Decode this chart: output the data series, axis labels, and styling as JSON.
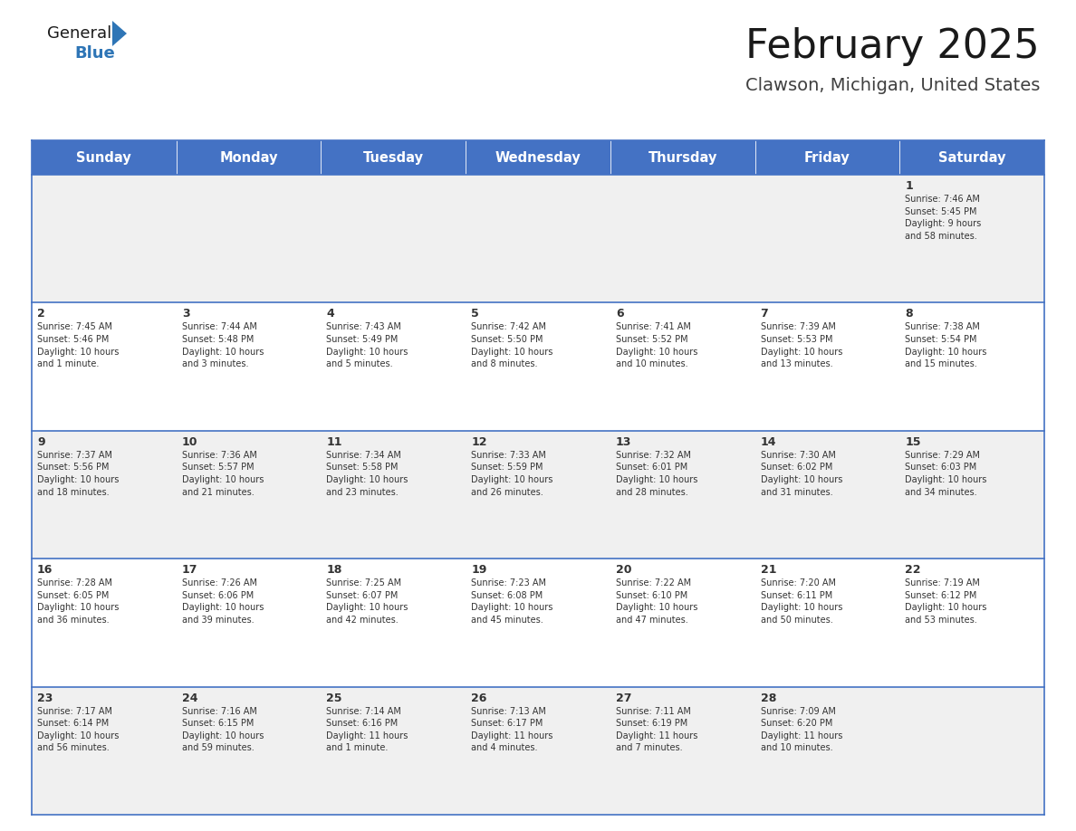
{
  "title": "February 2025",
  "subtitle": "Clawson, Michigan, United States",
  "header_color": "#4472C4",
  "header_text_color": "#FFFFFF",
  "cell_bg_odd": "#F0F0F0",
  "cell_bg_even": "#FFFFFF",
  "border_color": "#4472C4",
  "text_color": "#333333",
  "days_of_week": [
    "Sunday",
    "Monday",
    "Tuesday",
    "Wednesday",
    "Thursday",
    "Friday",
    "Saturday"
  ],
  "weeks": [
    [
      {
        "day": null,
        "info": null
      },
      {
        "day": null,
        "info": null
      },
      {
        "day": null,
        "info": null
      },
      {
        "day": null,
        "info": null
      },
      {
        "day": null,
        "info": null
      },
      {
        "day": null,
        "info": null
      },
      {
        "day": "1",
        "info": "Sunrise: 7:46 AM\nSunset: 5:45 PM\nDaylight: 9 hours\nand 58 minutes."
      }
    ],
    [
      {
        "day": "2",
        "info": "Sunrise: 7:45 AM\nSunset: 5:46 PM\nDaylight: 10 hours\nand 1 minute."
      },
      {
        "day": "3",
        "info": "Sunrise: 7:44 AM\nSunset: 5:48 PM\nDaylight: 10 hours\nand 3 minutes."
      },
      {
        "day": "4",
        "info": "Sunrise: 7:43 AM\nSunset: 5:49 PM\nDaylight: 10 hours\nand 5 minutes."
      },
      {
        "day": "5",
        "info": "Sunrise: 7:42 AM\nSunset: 5:50 PM\nDaylight: 10 hours\nand 8 minutes."
      },
      {
        "day": "6",
        "info": "Sunrise: 7:41 AM\nSunset: 5:52 PM\nDaylight: 10 hours\nand 10 minutes."
      },
      {
        "day": "7",
        "info": "Sunrise: 7:39 AM\nSunset: 5:53 PM\nDaylight: 10 hours\nand 13 minutes."
      },
      {
        "day": "8",
        "info": "Sunrise: 7:38 AM\nSunset: 5:54 PM\nDaylight: 10 hours\nand 15 minutes."
      }
    ],
    [
      {
        "day": "9",
        "info": "Sunrise: 7:37 AM\nSunset: 5:56 PM\nDaylight: 10 hours\nand 18 minutes."
      },
      {
        "day": "10",
        "info": "Sunrise: 7:36 AM\nSunset: 5:57 PM\nDaylight: 10 hours\nand 21 minutes."
      },
      {
        "day": "11",
        "info": "Sunrise: 7:34 AM\nSunset: 5:58 PM\nDaylight: 10 hours\nand 23 minutes."
      },
      {
        "day": "12",
        "info": "Sunrise: 7:33 AM\nSunset: 5:59 PM\nDaylight: 10 hours\nand 26 minutes."
      },
      {
        "day": "13",
        "info": "Sunrise: 7:32 AM\nSunset: 6:01 PM\nDaylight: 10 hours\nand 28 minutes."
      },
      {
        "day": "14",
        "info": "Sunrise: 7:30 AM\nSunset: 6:02 PM\nDaylight: 10 hours\nand 31 minutes."
      },
      {
        "day": "15",
        "info": "Sunrise: 7:29 AM\nSunset: 6:03 PM\nDaylight: 10 hours\nand 34 minutes."
      }
    ],
    [
      {
        "day": "16",
        "info": "Sunrise: 7:28 AM\nSunset: 6:05 PM\nDaylight: 10 hours\nand 36 minutes."
      },
      {
        "day": "17",
        "info": "Sunrise: 7:26 AM\nSunset: 6:06 PM\nDaylight: 10 hours\nand 39 minutes."
      },
      {
        "day": "18",
        "info": "Sunrise: 7:25 AM\nSunset: 6:07 PM\nDaylight: 10 hours\nand 42 minutes."
      },
      {
        "day": "19",
        "info": "Sunrise: 7:23 AM\nSunset: 6:08 PM\nDaylight: 10 hours\nand 45 minutes."
      },
      {
        "day": "20",
        "info": "Sunrise: 7:22 AM\nSunset: 6:10 PM\nDaylight: 10 hours\nand 47 minutes."
      },
      {
        "day": "21",
        "info": "Sunrise: 7:20 AM\nSunset: 6:11 PM\nDaylight: 10 hours\nand 50 minutes."
      },
      {
        "day": "22",
        "info": "Sunrise: 7:19 AM\nSunset: 6:12 PM\nDaylight: 10 hours\nand 53 minutes."
      }
    ],
    [
      {
        "day": "23",
        "info": "Sunrise: 7:17 AM\nSunset: 6:14 PM\nDaylight: 10 hours\nand 56 minutes."
      },
      {
        "day": "24",
        "info": "Sunrise: 7:16 AM\nSunset: 6:15 PM\nDaylight: 10 hours\nand 59 minutes."
      },
      {
        "day": "25",
        "info": "Sunrise: 7:14 AM\nSunset: 6:16 PM\nDaylight: 11 hours\nand 1 minute."
      },
      {
        "day": "26",
        "info": "Sunrise: 7:13 AM\nSunset: 6:17 PM\nDaylight: 11 hours\nand 4 minutes."
      },
      {
        "day": "27",
        "info": "Sunrise: 7:11 AM\nSunset: 6:19 PM\nDaylight: 11 hours\nand 7 minutes."
      },
      {
        "day": "28",
        "info": "Sunrise: 7:09 AM\nSunset: 6:20 PM\nDaylight: 11 hours\nand 10 minutes."
      },
      {
        "day": null,
        "info": null
      }
    ]
  ],
  "logo_general_color": "#1a1a1a",
  "logo_blue_color": "#2E75B6",
  "logo_triangle_color": "#2E75B6",
  "title_color": "#1a1a1a",
  "subtitle_color": "#404040",
  "fig_width": 11.88,
  "fig_height": 9.18,
  "dpi": 100
}
